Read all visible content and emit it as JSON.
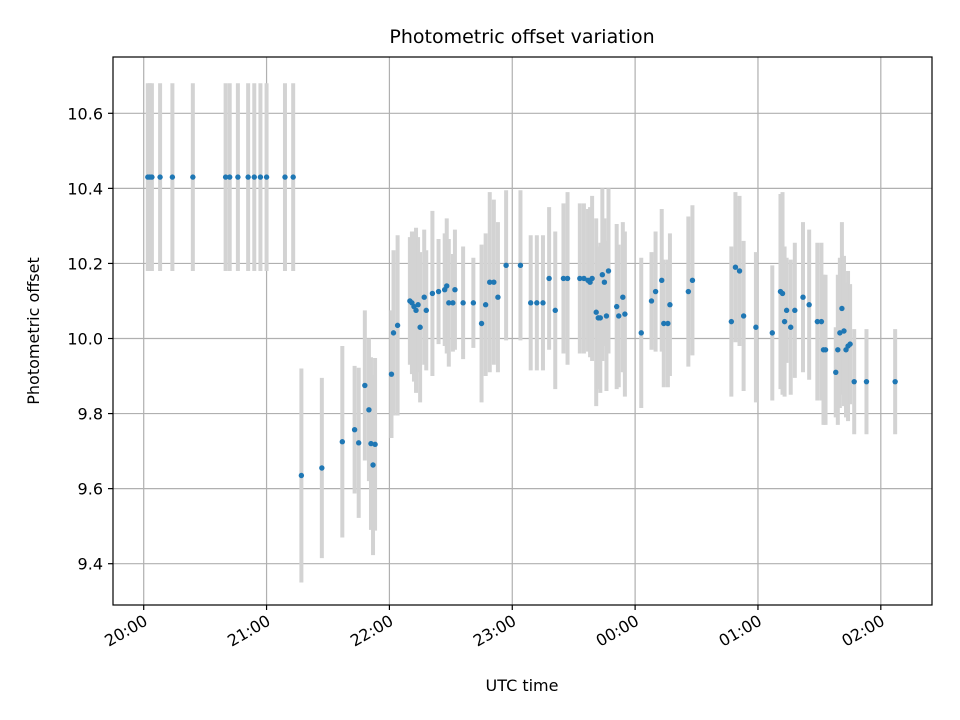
{
  "chart_data": {
    "type": "scatter",
    "title": "Photometric offset variation",
    "xlabel": "UTC time",
    "ylabel": "Photometric offset",
    "x_unit": "minutes",
    "x_ticks": [
      {
        "x": 0,
        "label": "20:00"
      },
      {
        "x": 60,
        "label": "21:00"
      },
      {
        "x": 120,
        "label": "22:00"
      },
      {
        "x": 180,
        "label": "23:00"
      },
      {
        "x": 240,
        "label": "00:00"
      },
      {
        "x": 300,
        "label": "01:00"
      },
      {
        "x": 360,
        "label": "02:00"
      }
    ],
    "y_ticks": [
      9.4,
      9.6,
      9.8,
      10.0,
      10.2,
      10.4,
      10.6
    ],
    "xlim": [
      -15,
      385
    ],
    "ylim": [
      9.29,
      10.75
    ],
    "grid": true,
    "series_color": "#1f77b4",
    "errorbar_color": "#d3d3d3",
    "points": [
      [
        2,
        10.43,
        0.25
      ],
      [
        3,
        10.43,
        0.25
      ],
      [
        4,
        10.43,
        0.25
      ],
      [
        8,
        10.43,
        0.25
      ],
      [
        14,
        10.43,
        0.25
      ],
      [
        24,
        10.43,
        0.25
      ],
      [
        40,
        10.43,
        0.25
      ],
      [
        42,
        10.43,
        0.25
      ],
      [
        46,
        10.43,
        0.25
      ],
      [
        51,
        10.43,
        0.25
      ],
      [
        54,
        10.43,
        0.25
      ],
      [
        57,
        10.43,
        0.25
      ],
      [
        60,
        10.43,
        0.25
      ],
      [
        69,
        10.43,
        0.25
      ],
      [
        73,
        10.43,
        0.25
      ],
      [
        77,
        9.635,
        0.285
      ],
      [
        87,
        9.655,
        0.24
      ],
      [
        97,
        9.725,
        0.255
      ],
      [
        103,
        9.757,
        0.17
      ],
      [
        105,
        9.722,
        0.2
      ],
      [
        108,
        9.875,
        0.2
      ],
      [
        110,
        9.81,
        0.19
      ],
      [
        111,
        9.72,
        0.23
      ],
      [
        112,
        9.663,
        0.24
      ],
      [
        113,
        9.718,
        0.23
      ],
      [
        121,
        9.905,
        0.17
      ],
      [
        122,
        10.015,
        0.22
      ],
      [
        124,
        10.035,
        0.24
      ],
      [
        130,
        10.1,
        0.17
      ],
      [
        131,
        10.095,
        0.19
      ],
      [
        132,
        10.085,
        0.2
      ],
      [
        133,
        10.075,
        0.22
      ],
      [
        134,
        10.09,
        0.18
      ],
      [
        135,
        10.03,
        0.2
      ],
      [
        137,
        10.11,
        0.18
      ],
      [
        138,
        10.075,
        0.16
      ],
      [
        141,
        10.12,
        0.22
      ],
      [
        144,
        10.125,
        0.14
      ],
      [
        147,
        10.13,
        0.15
      ],
      [
        148,
        10.14,
        0.18
      ],
      [
        149,
        10.095,
        0.17
      ],
      [
        151,
        10.095,
        0.13
      ],
      [
        152,
        10.13,
        0.16
      ],
      [
        156,
        10.095,
        0.15
      ],
      [
        161,
        10.095,
        0.12
      ],
      [
        165,
        10.04,
        0.21
      ],
      [
        167,
        10.09,
        0.19
      ],
      [
        169,
        10.15,
        0.24
      ],
      [
        171,
        10.15,
        0.22
      ],
      [
        173,
        10.11,
        0.2
      ],
      [
        177,
        10.195,
        0.2
      ],
      [
        184,
        10.195,
        0.2
      ],
      [
        189,
        10.095,
        0.18
      ],
      [
        192,
        10.095,
        0.18
      ],
      [
        195,
        10.095,
        0.18
      ],
      [
        198,
        10.16,
        0.19
      ],
      [
        201,
        10.075,
        0.21
      ],
      [
        205,
        10.16,
        0.2
      ],
      [
        207,
        10.16,
        0.23
      ],
      [
        213,
        10.16,
        0.2
      ],
      [
        215,
        10.16,
        0.2
      ],
      [
        217,
        10.155,
        0.19
      ],
      [
        218,
        10.15,
        0.2
      ],
      [
        219,
        10.16,
        0.22
      ],
      [
        221,
        10.07,
        0.25
      ],
      [
        222,
        10.055,
        0.19
      ],
      [
        223,
        10.055,
        0.2
      ],
      [
        224,
        10.17,
        0.23
      ],
      [
        225,
        10.15,
        0.17
      ],
      [
        226,
        10.06,
        0.2
      ],
      [
        227,
        10.18,
        0.22
      ],
      [
        231,
        10.085,
        0.22
      ],
      [
        232,
        10.06,
        0.19
      ],
      [
        234,
        10.11,
        0.2
      ],
      [
        235,
        10.065,
        0.22
      ],
      [
        243,
        10.015,
        0.2
      ],
      [
        248,
        10.1,
        0.13
      ],
      [
        250,
        10.125,
        0.16
      ],
      [
        253,
        10.155,
        0.19
      ],
      [
        254,
        10.04,
        0.17
      ],
      [
        256,
        10.04,
        0.17
      ],
      [
        257,
        10.09,
        0.19
      ],
      [
        266,
        10.125,
        0.2
      ],
      [
        268,
        10.155,
        0.2
      ],
      [
        287,
        10.045,
        0.2
      ],
      [
        289,
        10.19,
        0.2
      ],
      [
        291,
        10.18,
        0.2
      ],
      [
        293,
        10.06,
        0.2
      ],
      [
        299,
        10.03,
        0.2
      ],
      [
        307,
        10.015,
        0.18
      ],
      [
        311,
        10.125,
        0.26
      ],
      [
        312,
        10.12,
        0.27
      ],
      [
        313,
        10.045,
        0.2
      ],
      [
        314,
        10.075,
        0.14
      ],
      [
        316,
        10.03,
        0.18
      ],
      [
        318,
        10.075,
        0.18
      ],
      [
        322,
        10.11,
        0.2
      ],
      [
        325,
        10.09,
        0.2
      ],
      [
        329,
        10.045,
        0.21
      ],
      [
        331,
        10.045,
        0.21
      ],
      [
        332,
        9.97,
        0.2
      ],
      [
        333,
        9.97,
        0.2
      ],
      [
        338,
        9.91,
        0.12
      ],
      [
        339,
        9.97,
        0.2
      ],
      [
        340,
        10.015,
        0.2
      ],
      [
        341,
        10.08,
        0.23
      ],
      [
        342,
        10.02,
        0.2
      ],
      [
        343,
        9.97,
        0.18
      ],
      [
        344,
        9.98,
        0.2
      ],
      [
        345,
        9.985,
        0.16
      ],
      [
        347,
        9.885,
        0.14
      ],
      [
        353,
        9.885,
        0.14
      ],
      [
        367,
        9.885,
        0.14
      ]
    ]
  }
}
